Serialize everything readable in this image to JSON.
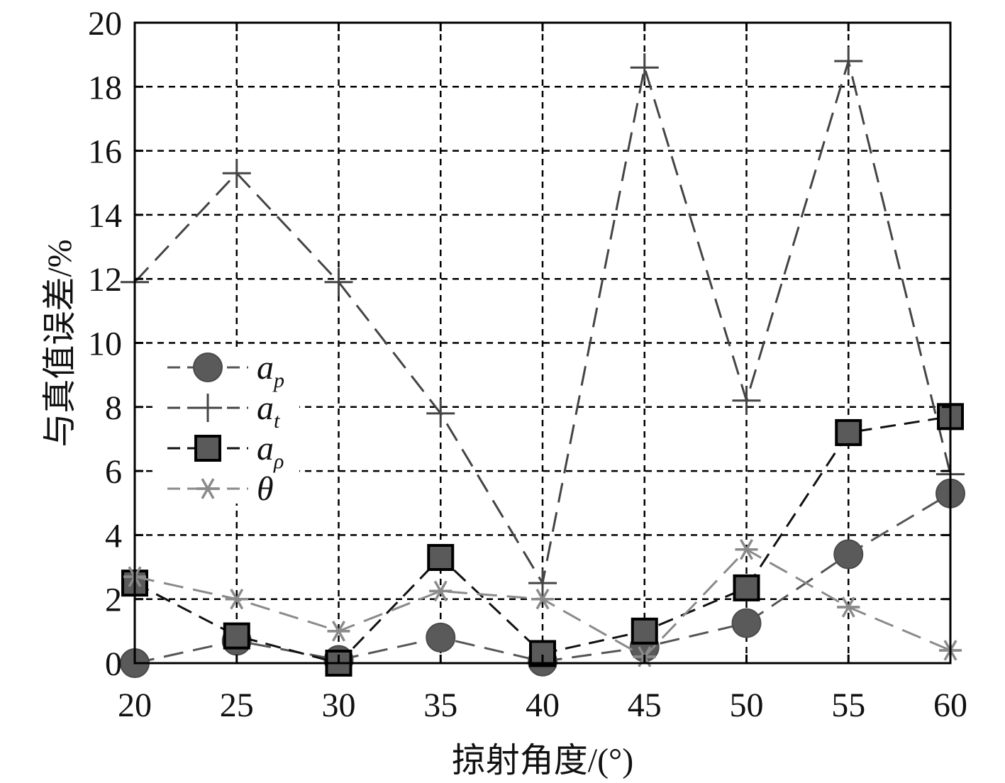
{
  "chart_data": {
    "type": "line",
    "title": "",
    "xlabel": "掠射角度/(°)",
    "ylabel": "与真值误差/%",
    "x": [
      20,
      25,
      30,
      35,
      40,
      45,
      50,
      55,
      60
    ],
    "xlim": [
      20,
      60
    ],
    "ylim": [
      0,
      20
    ],
    "xticks": [
      20,
      25,
      30,
      35,
      40,
      45,
      50,
      55,
      60
    ],
    "yticks": [
      0,
      2,
      4,
      6,
      8,
      10,
      12,
      14,
      16,
      18,
      20
    ],
    "grid": true,
    "legend_position": "left-middle",
    "series": [
      {
        "name": "a_p",
        "label_main": "a",
        "label_sub": "p",
        "marker": "circle",
        "color": "#555555",
        "dash": "28 14",
        "values": [
          0.0,
          0.7,
          0.1,
          0.8,
          0.05,
          0.5,
          1.25,
          3.4,
          5.3
        ]
      },
      {
        "name": "a_t",
        "label_main": "a",
        "label_sub": "t",
        "marker": "plus",
        "color": "#444444",
        "dash": "28 14",
        "values": [
          11.9,
          15.3,
          11.9,
          7.8,
          2.5,
          18.6,
          8.2,
          18.8,
          5.9
        ]
      },
      {
        "name": "a_ρ",
        "label_main": "a",
        "label_sub": "ρ",
        "marker": "square",
        "color": "#111111",
        "dash": "22 12",
        "values": [
          2.5,
          0.85,
          0.0,
          3.3,
          0.3,
          1.0,
          2.35,
          7.2,
          7.7
        ]
      },
      {
        "name": "θ",
        "label_main": "θ",
        "label_sub": "",
        "marker": "asterisk",
        "color": "#8a8a8a",
        "dash": "28 14",
        "values": [
          2.7,
          2.0,
          1.0,
          2.25,
          2.0,
          0.2,
          3.55,
          1.75,
          0.4
        ]
      }
    ]
  }
}
